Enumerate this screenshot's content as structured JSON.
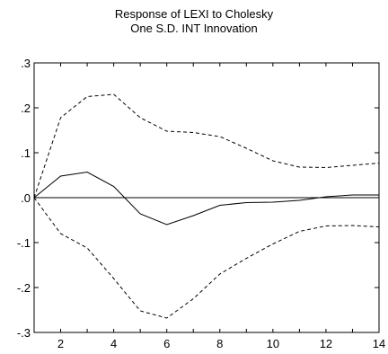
{
  "chart_data": {
    "type": "line",
    "title_lines": [
      "Response of LEXI to Cholesky",
      "One S.D. INT Innovation"
    ],
    "x": [
      1,
      2,
      3,
      4,
      5,
      6,
      7,
      8,
      9,
      10,
      11,
      12,
      13,
      14
    ],
    "xlim": [
      1,
      14
    ],
    "ylim": [
      -0.3,
      0.3
    ],
    "xticks": [
      2,
      4,
      6,
      8,
      10,
      12,
      14
    ],
    "xtick_labels": [
      "2",
      "4",
      "6",
      "8",
      "10",
      "12",
      "14"
    ],
    "yticks": [
      0.3,
      0.2,
      0.1,
      0.0,
      -0.1,
      -0.2,
      -0.3
    ],
    "ytick_labels": [
      ".3",
      ".2",
      ".1",
      ".0",
      "-.1",
      "-.2",
      "-.3"
    ],
    "zero_line": true,
    "grid": false,
    "legend": "none",
    "series": [
      {
        "style": "solid",
        "values": [
          0.0,
          0.048,
          0.057,
          0.025,
          -0.036,
          -0.06,
          -0.04,
          -0.017,
          -0.011,
          -0.01,
          -0.006,
          0.002,
          0.006,
          0.006
        ]
      },
      {
        "style": "dashed",
        "values": [
          0.0,
          0.178,
          0.225,
          0.23,
          0.178,
          0.148,
          0.145,
          0.136,
          0.11,
          0.082,
          0.068,
          0.067,
          0.072,
          0.077
        ]
      },
      {
        "style": "dashed",
        "values": [
          0.0,
          -0.08,
          -0.112,
          -0.18,
          -0.252,
          -0.268,
          -0.225,
          -0.17,
          -0.135,
          -0.103,
          -0.075,
          -0.063,
          -0.062,
          -0.065
        ]
      }
    ]
  }
}
